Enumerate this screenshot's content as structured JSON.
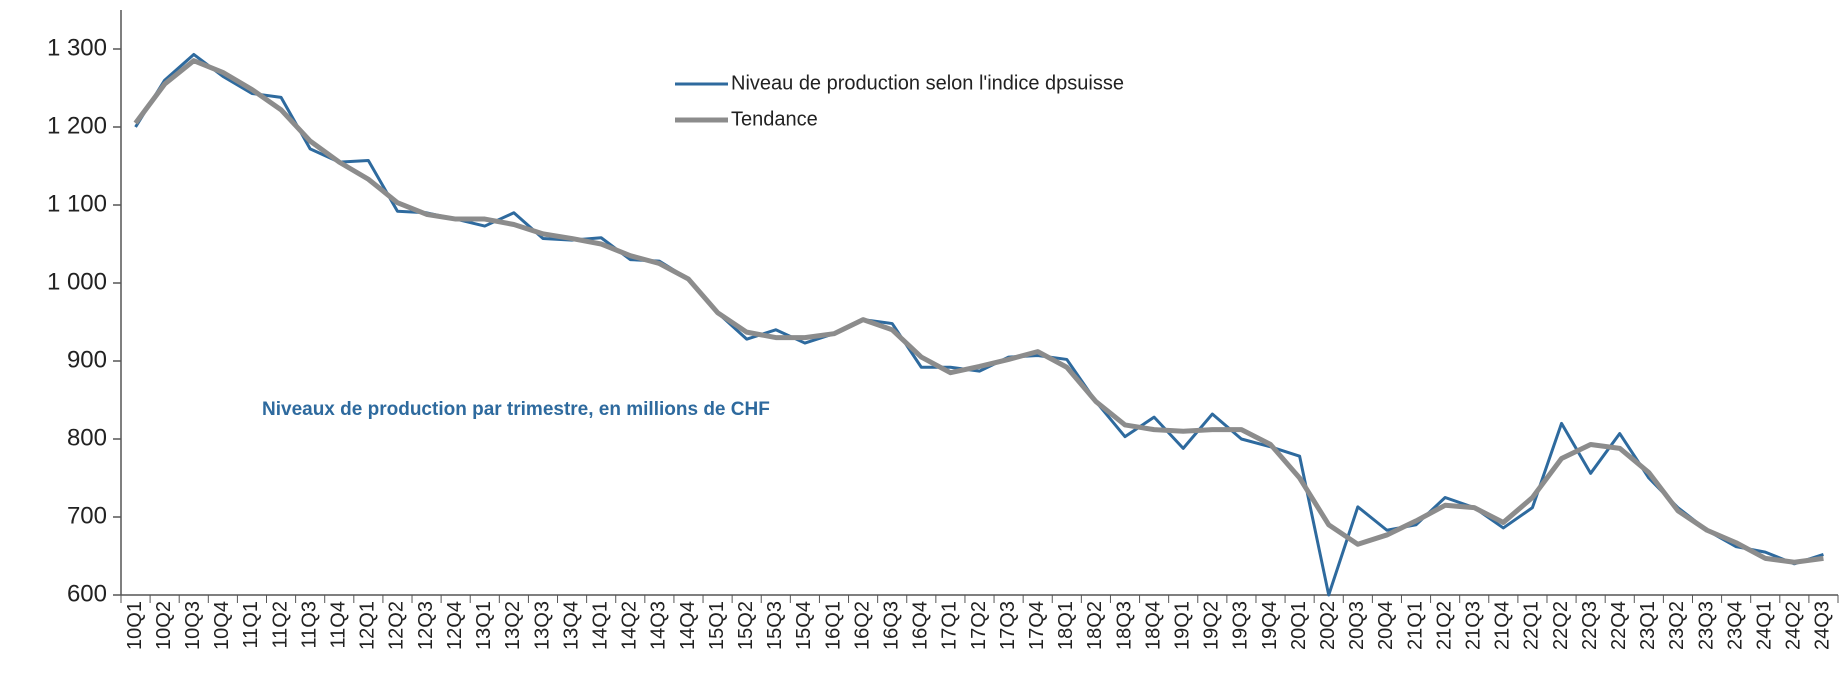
{
  "chart_data": {
    "type": "line",
    "annotation": "Niveaux de production par trimestre, en millions de CHF",
    "categories": [
      "10Q1",
      "10Q2",
      "10Q3",
      "10Q4",
      "11Q1",
      "11Q2",
      "11Q3",
      "11Q4",
      "12Q1",
      "12Q2",
      "12Q3",
      "12Q4",
      "13Q1",
      "13Q2",
      "13Q3",
      "13Q4",
      "14Q1",
      "14Q2",
      "14Q3",
      "14Q4",
      "15Q1",
      "15Q2",
      "15Q3",
      "15Q4",
      "16Q1",
      "16Q2",
      "16Q3",
      "16Q4",
      "17Q1",
      "17Q2",
      "17Q3",
      "17Q4",
      "18Q1",
      "18Q2",
      "18Q3",
      "18Q4",
      "19Q1",
      "19Q2",
      "19Q3",
      "19Q4",
      "20Q1",
      "20Q2",
      "20Q3",
      "20Q4",
      "21Q1",
      "21Q2",
      "21Q3",
      "21Q4",
      "22Q1",
      "22Q2",
      "22Q3",
      "22Q4",
      "23Q1",
      "23Q2",
      "23Q3",
      "23Q4",
      "24Q1",
      "24Q2",
      "24Q3"
    ],
    "series": [
      {
        "name": "Niveau de production selon l'indice dpsuisse",
        "color": "#2e6a9e",
        "values": [
          1200,
          1260,
          1293,
          1265,
          1243,
          1238,
          1172,
          1155,
          1157,
          1092,
          1090,
          1082,
          1073,
          1090,
          1057,
          1055,
          1058,
          1030,
          1028,
          1005,
          962,
          928,
          940,
          923,
          935,
          953,
          948,
          892,
          892,
          887,
          905,
          907,
          902,
          848,
          803,
          828,
          788,
          832,
          800,
          790,
          778,
          600,
          713,
          683,
          690,
          725,
          712,
          686,
          712,
          820,
          756,
          807,
          750,
          712,
          683,
          662,
          655,
          640,
          652
        ]
      },
      {
        "name": "Tendance",
        "color": "#8c8c8c",
        "values": [
          1205,
          1255,
          1285,
          1270,
          1248,
          1222,
          1182,
          1155,
          1133,
          1103,
          1088,
          1082,
          1082,
          1075,
          1063,
          1057,
          1050,
          1035,
          1025,
          1005,
          962,
          937,
          930,
          930,
          935,
          953,
          940,
          905,
          885,
          893,
          902,
          912,
          892,
          848,
          818,
          812,
          810,
          812,
          812,
          793,
          750,
          690,
          665,
          677,
          695,
          715,
          712,
          693,
          725,
          775,
          793,
          788,
          757,
          708,
          683,
          667,
          647,
          642,
          647
        ]
      }
    ],
    "ylim": [
      600,
      1350
    ],
    "yticks": [
      600,
      700,
      800,
      900,
      {
        "value": 1000,
        "label": "1 000"
      },
      {
        "value": 1100,
        "label": "1 100"
      },
      {
        "value": 1200,
        "label": "1 200"
      },
      {
        "value": 1300,
        "label": "1 300"
      }
    ],
    "grid": false
  }
}
